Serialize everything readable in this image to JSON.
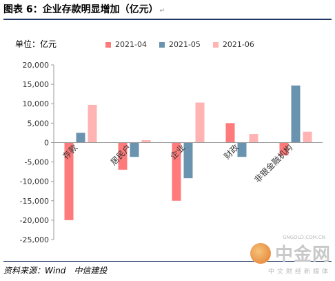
{
  "title": "图表 6：企业存款明显增加（亿元）",
  "title_mark": "↵",
  "unit_label": "单位：亿元",
  "source": "资料来源：Wind　中信建投",
  "watermark": {
    "main": "中金网",
    "url": "GNGOLD.COM.CN",
    "sub": "中文财经新媒体"
  },
  "chart_data": {
    "type": "bar",
    "categories": [
      "存款",
      "居民户",
      "企业",
      "财政",
      "非银金融机构"
    ],
    "series": [
      {
        "name": "2021-04",
        "color": "#ff7a7a",
        "values": [
          -20000,
          -7000,
          -15000,
          5000,
          -3300
        ]
      },
      {
        "name": "2021-05",
        "color": "#6a93b0",
        "values": [
          2500,
          -3700,
          -9200,
          -3700,
          14700
        ]
      },
      {
        "name": "2021-06",
        "color": "#ffb3b3",
        "values": [
          9700,
          600,
          10300,
          2200,
          2800
        ]
      }
    ],
    "ylim": [
      -25000,
      20000
    ],
    "yticks": [
      20000,
      15000,
      10000,
      5000,
      0,
      -5000,
      -10000,
      -15000,
      -20000,
      -25000
    ],
    "ytick_labels": [
      "20,000",
      "15,000",
      "10,000",
      "5,000",
      "0",
      "-5,000",
      "-10,000",
      "-15,000",
      "-20,000",
      "-25,000"
    ],
    "legend_position": "top",
    "grid": false
  }
}
